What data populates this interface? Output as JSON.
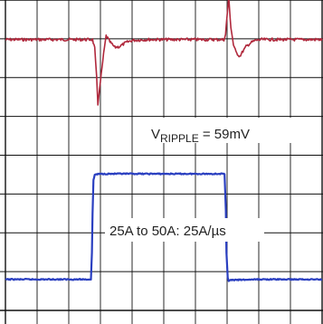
{
  "chart_data": {
    "type": "line",
    "title": "",
    "xlabel": "",
    "ylabel": "",
    "grid": true,
    "divisions": {
      "x": 10,
      "y": 8
    },
    "xlim": [
      0,
      10
    ],
    "ylim": [
      0,
      8
    ],
    "series": [
      {
        "color": "#b0283c",
        "x": [
          0,
          2.75,
          2.82,
          2.88,
          2.92,
          3.0,
          3.1,
          3.18,
          3.3,
          3.45,
          3.6,
          3.8,
          4.0,
          4.5,
          5.0,
          6.0,
          6.9,
          6.95,
          7.0,
          7.05,
          7.12,
          7.2,
          7.28,
          7.4,
          7.5,
          7.6,
          7.75,
          7.9,
          8.1,
          8.4,
          9.0,
          10.0
        ],
        "y": [
          6.98,
          6.98,
          6.75,
          6.0,
          5.32,
          5.9,
          6.6,
          7.08,
          6.92,
          6.78,
          6.8,
          6.9,
          6.96,
          6.98,
          6.98,
          6.98,
          6.98,
          7.1,
          7.6,
          8.05,
          7.3,
          6.85,
          6.65,
          6.55,
          6.68,
          6.8,
          6.9,
          6.96,
          6.98,
          6.98,
          6.98,
          6.98
        ]
      },
      {
        "color": "#2a3fc0",
        "x": [
          0,
          2.7,
          2.73,
          2.75,
          2.78,
          2.82,
          3.0,
          5.0,
          6.88,
          6.92,
          6.96,
          6.98,
          7.02,
          7.05,
          7.1,
          8.0,
          10.0
        ],
        "y": [
          0.8,
          0.8,
          1.5,
          2.5,
          3.35,
          3.5,
          3.52,
          3.52,
          3.52,
          3.5,
          2.6,
          1.5,
          0.85,
          0.75,
          0.78,
          0.8,
          0.8
        ]
      }
    ],
    "annotations": [
      {
        "main": "V",
        "sub": "RIPPLE",
        "rest": " = 59mV"
      },
      {
        "text": "25A to 50A: 25A/µs"
      }
    ]
  }
}
